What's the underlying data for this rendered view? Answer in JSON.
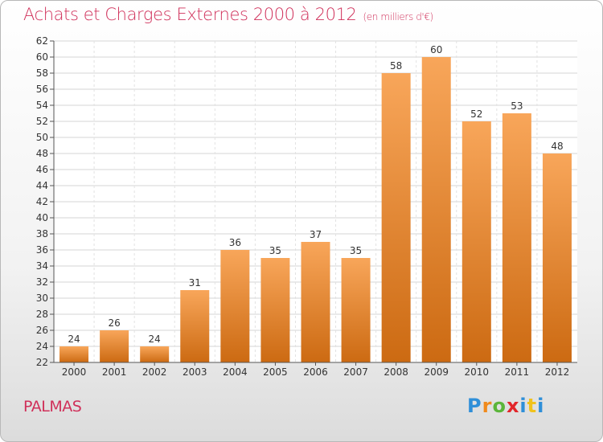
{
  "page": {
    "title": "Achats et Charges Externes 2000 à 2012",
    "subtitle": "(en milliers d'€)",
    "footer_name": "PALMAS",
    "logo_text": "Proxiti",
    "colors": {
      "title": "#d0305a",
      "bar_light": "#f8a65a",
      "bar_dark": "#cc6a12",
      "grid": "#d6d6d6",
      "axis": "#555555"
    }
  },
  "chart_data": {
    "type": "bar",
    "title": "Achats et Charges Externes 2000 à 2012",
    "subtitle": "(en milliers d'€)",
    "xlabel": "",
    "ylabel": "",
    "categories": [
      "2000",
      "2001",
      "2002",
      "2003",
      "2004",
      "2005",
      "2006",
      "2007",
      "2008",
      "2009",
      "2010",
      "2011",
      "2012"
    ],
    "values": [
      24,
      26,
      24,
      31,
      36,
      35,
      37,
      35,
      58,
      60,
      52,
      53,
      48
    ],
    "ylim": [
      22,
      62
    ],
    "ytick_step": 2,
    "grid": true,
    "data_labels": true,
    "legend": "none"
  }
}
